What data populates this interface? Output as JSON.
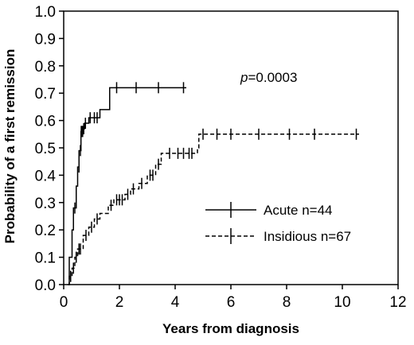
{
  "chart_data": {
    "type": "line",
    "title": "",
    "xlabel": "Years from diagnosis",
    "ylabel": "Probability of a first remission",
    "xlim": [
      0,
      12
    ],
    "ylim": [
      0,
      1
    ],
    "x_ticks": [
      "0",
      "2",
      "4",
      "6",
      "8",
      "10",
      "12"
    ],
    "y_ticks": [
      "0.0",
      "0.1",
      "0.2",
      "0.3",
      "0.4",
      "0.5",
      "0.6",
      "0.7",
      "0.8",
      "0.9",
      "1.0"
    ],
    "grid": false,
    "legend_position": "center-right",
    "annotation": {
      "italic": "p",
      "rest": "=0.0003"
    },
    "series": [
      {
        "name": "Acute n=44",
        "style": "solid",
        "color": "#000000",
        "steps": [
          [
            0.15,
            0.0
          ],
          [
            0.2,
            0.1
          ],
          [
            0.3,
            0.2
          ],
          [
            0.35,
            0.28
          ],
          [
            0.45,
            0.36
          ],
          [
            0.5,
            0.43
          ],
          [
            0.55,
            0.49
          ],
          [
            0.62,
            0.56
          ],
          [
            0.7,
            0.57
          ],
          [
            0.75,
            0.59
          ],
          [
            0.9,
            0.61
          ],
          [
            1.3,
            0.64
          ],
          [
            1.65,
            0.72
          ],
          [
            4.4,
            0.72
          ]
        ],
        "censored": [
          [
            0.4,
            0.28
          ],
          [
            0.55,
            0.43
          ],
          [
            0.6,
            0.49
          ],
          [
            0.63,
            0.56
          ],
          [
            0.66,
            0.56
          ],
          [
            0.68,
            0.56
          ],
          [
            0.72,
            0.57
          ],
          [
            0.78,
            0.59
          ],
          [
            0.95,
            0.61
          ],
          [
            1.1,
            0.61
          ],
          [
            1.2,
            0.61
          ],
          [
            1.9,
            0.72
          ],
          [
            2.6,
            0.72
          ],
          [
            3.4,
            0.72
          ],
          [
            4.3,
            0.72
          ]
        ]
      },
      {
        "name": "Insidious n=67",
        "style": "dashed",
        "color": "#000000",
        "steps": [
          [
            0.15,
            0.0
          ],
          [
            0.2,
            0.03
          ],
          [
            0.3,
            0.06
          ],
          [
            0.4,
            0.1
          ],
          [
            0.5,
            0.13
          ],
          [
            0.7,
            0.18
          ],
          [
            0.9,
            0.21
          ],
          [
            1.1,
            0.24
          ],
          [
            1.3,
            0.26
          ],
          [
            1.6,
            0.29
          ],
          [
            1.8,
            0.31
          ],
          [
            2.2,
            0.33
          ],
          [
            2.4,
            0.35
          ],
          [
            2.7,
            0.37
          ],
          [
            3.0,
            0.4
          ],
          [
            3.3,
            0.44
          ],
          [
            3.5,
            0.48
          ],
          [
            4.8,
            0.5
          ],
          [
            4.85,
            0.55
          ],
          [
            10.6,
            0.55
          ]
        ],
        "censored": [
          [
            0.25,
            0.03
          ],
          [
            0.35,
            0.06
          ],
          [
            0.45,
            0.1
          ],
          [
            0.55,
            0.13
          ],
          [
            0.6,
            0.13
          ],
          [
            0.8,
            0.18
          ],
          [
            1.0,
            0.21
          ],
          [
            1.2,
            0.24
          ],
          [
            1.7,
            0.29
          ],
          [
            1.9,
            0.31
          ],
          [
            2.0,
            0.31
          ],
          [
            2.1,
            0.31
          ],
          [
            2.3,
            0.33
          ],
          [
            2.5,
            0.35
          ],
          [
            2.8,
            0.37
          ],
          [
            3.1,
            0.4
          ],
          [
            3.2,
            0.4
          ],
          [
            3.4,
            0.44
          ],
          [
            3.8,
            0.48
          ],
          [
            4.1,
            0.48
          ],
          [
            4.3,
            0.48
          ],
          [
            4.5,
            0.48
          ],
          [
            4.6,
            0.48
          ],
          [
            5.0,
            0.55
          ],
          [
            5.5,
            0.55
          ],
          [
            6.0,
            0.55
          ],
          [
            7.0,
            0.55
          ],
          [
            8.1,
            0.55
          ],
          [
            9.0,
            0.55
          ],
          [
            10.5,
            0.55
          ]
        ]
      }
    ]
  }
}
